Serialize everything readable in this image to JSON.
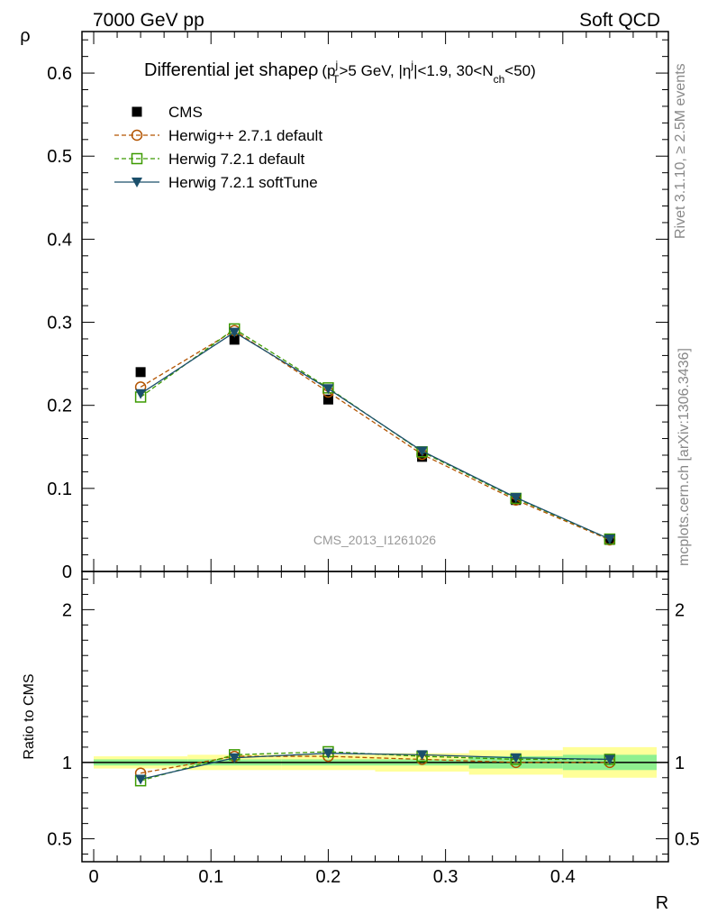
{
  "header": {
    "left": "7000 GeV pp",
    "right": "Soft QCD"
  },
  "side_labels": {
    "rivet": "Rivet 3.1.10, ≥ 2.5M events",
    "mcplots": "mcplots.cern.ch [arXiv:1306.3436]"
  },
  "chart_data": [
    {
      "type": "scatter",
      "title": {
        "main": "Differential jet shape",
        "rho": "ρ",
        "cut_open": "(p",
        "cut_p_sup": "j",
        "cut_p_sub": "T",
        "cut_mid": ">5 GeV, |η",
        "cut_eta_sup": "j",
        "cut_mid2": "|<1.9, 30<N",
        "cut_n_sub": "ch",
        "cut_close": "<50)"
      },
      "watermark": "CMS_2013_I1261026",
      "xlabel": "R",
      "ylabel": "ρ",
      "xlim": [
        -0.01,
        0.49
      ],
      "ylim": [
        0,
        0.65
      ],
      "yticks": [
        "0.1",
        "0.2",
        "0.3",
        "0.4",
        "0.5",
        "0.6"
      ],
      "ytick_cut": "0",
      "x": [
        0.04,
        0.12,
        0.2,
        0.28,
        0.36,
        0.44
      ],
      "legend_position": "top-left",
      "series": [
        {
          "name": "CMS",
          "color": "#000000",
          "marker": "filled-square",
          "line": "none",
          "values": [
            0.24,
            0.279,
            0.207,
            0.138,
            0.086,
            0.038
          ]
        },
        {
          "name": "Herwig++ 2.7.1 default",
          "color": "#b35400",
          "marker": "open-circle",
          "line": "dashed",
          "values": [
            0.222,
            0.29,
            0.216,
            0.141,
            0.086,
            0.038
          ]
        },
        {
          "name": "Herwig 7.2.1 default",
          "color": "#3c9a00",
          "marker": "open-square",
          "line": "dashed",
          "values": [
            0.21,
            0.292,
            0.221,
            0.144,
            0.088,
            0.039
          ]
        },
        {
          "name": "Herwig 7.2.1 softTune",
          "color": "#1b4f6b",
          "marker": "filled-triangle-down",
          "line": "solid",
          "values": [
            0.214,
            0.288,
            0.22,
            0.145,
            0.089,
            0.039
          ]
        }
      ]
    },
    {
      "type": "line",
      "ylabel": "Ratio to CMS",
      "xlabel": "R",
      "xlim": [
        -0.01,
        0.49
      ],
      "ylim": [
        0.35,
        2.25
      ],
      "yticks": [
        "0.5",
        "1",
        "2"
      ],
      "xticks": [
        "0",
        "0.1",
        "0.2",
        "0.3",
        "0.4"
      ],
      "x": [
        0.04,
        0.12,
        0.2,
        0.28,
        0.36,
        0.44
      ],
      "bins": [
        [
          0.0,
          0.08
        ],
        [
          0.08,
          0.16
        ],
        [
          0.16,
          0.24
        ],
        [
          0.24,
          0.32
        ],
        [
          0.32,
          0.4
        ],
        [
          0.4,
          0.48
        ]
      ],
      "band_stat": [
        0.02,
        0.02,
        0.02,
        0.02,
        0.04,
        0.05
      ],
      "band_total": [
        0.04,
        0.05,
        0.05,
        0.06,
        0.08,
        0.1
      ],
      "band_colors": {
        "stat": "#8ff08f",
        "total": "#ffff99"
      },
      "series": [
        {
          "name": "Herwig++ 2.7.1 default",
          "color": "#b35400",
          "values": [
            0.93,
            1.04,
            1.04,
            1.02,
            1.0,
            1.0
          ]
        },
        {
          "name": "Herwig 7.2.1 default",
          "color": "#3c9a00",
          "values": [
            0.88,
            1.05,
            1.07,
            1.04,
            1.02,
            1.02
          ]
        },
        {
          "name": "Herwig 7.2.1 softTune",
          "color": "#1b4f6b",
          "values": [
            0.89,
            1.03,
            1.06,
            1.05,
            1.03,
            1.02
          ]
        }
      ]
    }
  ]
}
